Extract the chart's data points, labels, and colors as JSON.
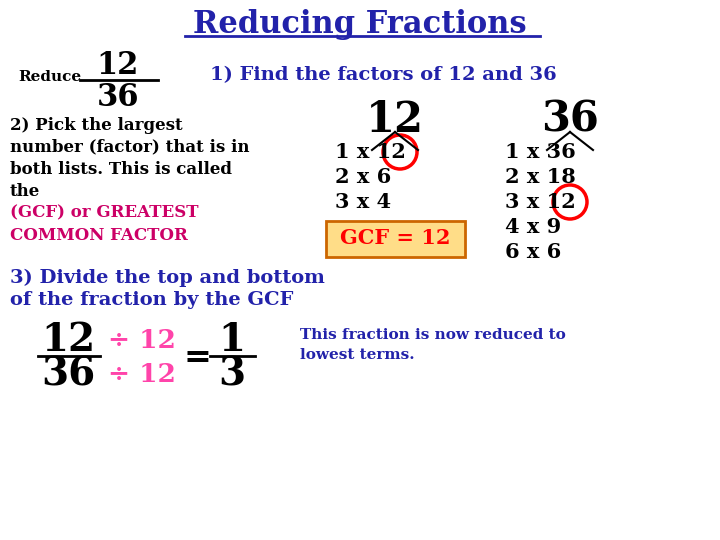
{
  "title": "Reducing Fractions",
  "title_color": "#2222aa",
  "title_fontsize": 22,
  "background_color": "#ffffff",
  "reduce_label": "Reduce",
  "step1_text": "1) Find the factors of 12 and 36",
  "step1_color": "#2222aa",
  "step2_lines": [
    "2) Pick the largest",
    "number (factor) that is in",
    "both lists. This is called",
    "the"
  ],
  "step2_color": "#000000",
  "gcf_line1": "(GCF) or GREATEST",
  "gcf_line2": "COMMON FACTOR",
  "gcf_color": "#cc0066",
  "step3_text1": "3) Divide the top and bottom",
  "step3_text2": "of the fraction by the GCF",
  "step3_color": "#2222aa",
  "reduced_note": "This fraction is now reduced to",
  "reduced_note2": "lowest terms.",
  "reduced_note_color": "#2222aa",
  "factors12": [
    "1 x 12",
    "2 x 6",
    "3 x 4"
  ],
  "factors36": [
    "1 x 36",
    "2 x 18",
    "3 x 12",
    "4 x 9",
    "6 x 6"
  ],
  "divide_symbol": "÷ 12",
  "gcf_label": "GCF = 12",
  "frac_top": "12",
  "frac_bot": "36",
  "result_top": "1",
  "result_bot": "3",
  "num12": "12",
  "num36": "36"
}
